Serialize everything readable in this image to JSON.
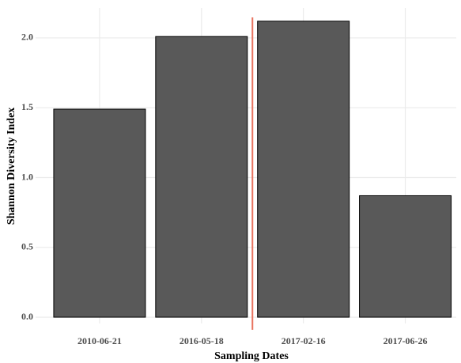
{
  "chart_data": {
    "type": "bar",
    "x_label": "Sampling Dates",
    "y_label": "Shannon Diversity Index",
    "categories": [
      "2010-06-21",
      "2016-05-18",
      "2017-02-16",
      "2017-06-26"
    ],
    "values": [
      1.49,
      2.01,
      2.12,
      0.87
    ],
    "color": "#595959",
    "ylim": [
      -0.045,
      2.215
    ],
    "yticks": [
      {
        "value": 0,
        "label": "0.0"
      },
      {
        "value": 0.5,
        "label": "0.5"
      },
      {
        "value": 1,
        "label": "1.0"
      },
      {
        "value": 1.5,
        "label": "1.5"
      },
      {
        "value": 2,
        "label": "2.0"
      }
    ],
    "grid": true,
    "vline_x": 2.5,
    "vline_color": "#e8735f"
  }
}
